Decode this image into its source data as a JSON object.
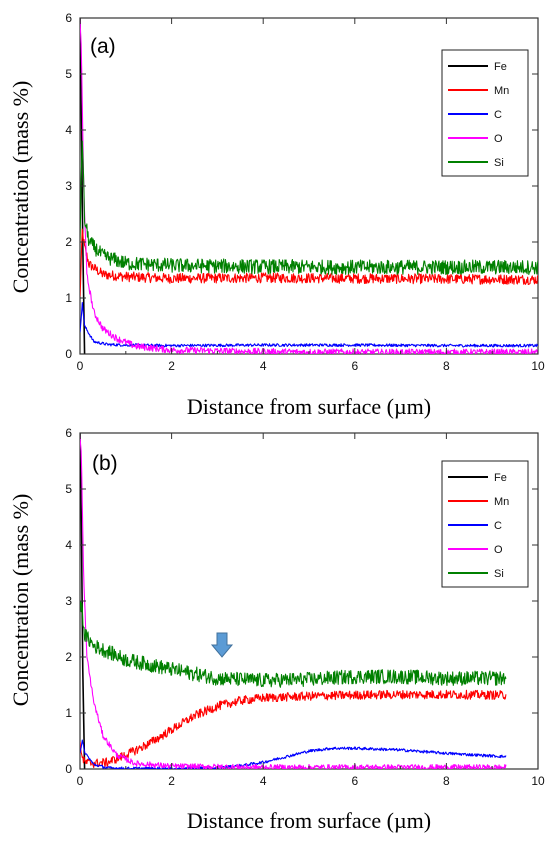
{
  "chart_data": [
    {
      "type": "line",
      "panel_label": "(a)",
      "xlabel": "Distance from surface (µm)",
      "ylabel": "Concentration (mass %)",
      "xlim": [
        0,
        10
      ],
      "ylim": [
        0,
        6
      ],
      "xticks": [
        "0",
        "2",
        "4",
        "6",
        "8",
        "10"
      ],
      "yticks": [
        "0",
        "1",
        "2",
        "3",
        "4",
        "5",
        "6"
      ],
      "legend_position": "top-right",
      "grid": false,
      "series": [
        {
          "name": "Fe",
          "color": "#000000",
          "x": [
            0,
            0.03,
            0.06,
            0.1
          ],
          "y": [
            6.0,
            4.2,
            2.0,
            0.0
          ],
          "noise": 0.0
        },
        {
          "name": "Mn",
          "color": "#ff0000",
          "x": [
            0,
            0.05,
            0.1,
            0.2,
            0.5,
            1,
            2,
            4,
            6,
            8,
            10
          ],
          "y": [
            1.0,
            2.2,
            1.9,
            1.6,
            1.42,
            1.38,
            1.35,
            1.36,
            1.35,
            1.34,
            1.33
          ],
          "noise": 0.09
        },
        {
          "name": "C",
          "color": "#0000ff",
          "x": [
            0,
            0.05,
            0.1,
            0.3,
            0.6,
            1,
            2,
            4,
            6,
            8,
            10
          ],
          "y": [
            0.4,
            0.9,
            0.5,
            0.22,
            0.17,
            0.16,
            0.15,
            0.16,
            0.16,
            0.15,
            0.15
          ],
          "noise": 0.025
        },
        {
          "name": "O",
          "color": "#ff00ff",
          "x": [
            0,
            0.03,
            0.08,
            0.15,
            0.3,
            0.5,
            0.8,
            1.2,
            2,
            4,
            6,
            8,
            10
          ],
          "y": [
            6.0,
            5.4,
            3.0,
            1.4,
            0.75,
            0.45,
            0.28,
            0.14,
            0.07,
            0.04,
            0.03,
            0.03,
            0.03
          ],
          "noise": 0.06
        },
        {
          "name": "Si",
          "color": "#008000",
          "x": [
            0,
            0.05,
            0.1,
            0.2,
            0.5,
            1,
            2,
            4,
            6,
            8,
            10
          ],
          "y": [
            2.1,
            3.9,
            2.4,
            2.0,
            1.75,
            1.62,
            1.58,
            1.56,
            1.55,
            1.55,
            1.55
          ],
          "noise": 0.13
        }
      ]
    },
    {
      "type": "line",
      "panel_label": "(b)",
      "xlabel": "Distance from surface (µm)",
      "ylabel": "Concentration (mass %)",
      "xlim": [
        0,
        10
      ],
      "ylim": [
        0,
        6
      ],
      "xticks": [
        "0",
        "2",
        "4",
        "6",
        "8",
        "10"
      ],
      "yticks": [
        "0",
        "1",
        "2",
        "3",
        "4",
        "5",
        "6"
      ],
      "legend_position": "top-right",
      "grid": false,
      "annotation": {
        "type": "arrow",
        "color": "#5b9bd5",
        "x": 3.1,
        "y_tip": 2.0
      },
      "series": [
        {
          "name": "Fe",
          "color": "#000000",
          "x": [
            0,
            0.03,
            0.06,
            0.1
          ],
          "y": [
            6.0,
            4.4,
            1.8,
            0.0
          ],
          "noise": 0.0
        },
        {
          "name": "Mn",
          "color": "#ff0000",
          "x": [
            0,
            0.05,
            0.1,
            0.3,
            0.6,
            1,
            1.5,
            2,
            2.5,
            3,
            3.5,
            4,
            5,
            6,
            7,
            8,
            9.3
          ],
          "y": [
            0.5,
            0.2,
            0.12,
            0.1,
            0.12,
            0.25,
            0.45,
            0.7,
            0.95,
            1.12,
            1.22,
            1.27,
            1.3,
            1.32,
            1.33,
            1.33,
            1.32
          ],
          "noise": 0.08
        },
        {
          "name": "C",
          "color": "#0000ff",
          "x": [
            0,
            0.05,
            0.1,
            0.3,
            0.6,
            1,
            2,
            3,
            3.5,
            4,
            4.5,
            5,
            5.5,
            6,
            7,
            8,
            9.3
          ],
          "y": [
            0.3,
            0.5,
            0.3,
            0.08,
            0.02,
            0.01,
            0.01,
            0.02,
            0.06,
            0.12,
            0.22,
            0.32,
            0.37,
            0.37,
            0.34,
            0.28,
            0.22
          ],
          "noise": 0.025
        },
        {
          "name": "O",
          "color": "#ff00ff",
          "x": [
            0,
            0.03,
            0.08,
            0.15,
            0.3,
            0.5,
            0.8,
            1.2,
            2,
            4,
            6,
            8,
            9.3
          ],
          "y": [
            6.0,
            5.6,
            3.4,
            2.0,
            1.2,
            0.6,
            0.25,
            0.1,
            0.05,
            0.03,
            0.03,
            0.03,
            0.03
          ],
          "noise": 0.05
        },
        {
          "name": "Si",
          "color": "#008000",
          "x": [
            0,
            0.05,
            0.1,
            0.3,
            0.6,
            1,
            2,
            3,
            4,
            5,
            6,
            7,
            8,
            9.3
          ],
          "y": [
            3.0,
            2.8,
            2.4,
            2.2,
            2.1,
            1.95,
            1.78,
            1.62,
            1.58,
            1.6,
            1.65,
            1.65,
            1.62,
            1.62
          ],
          "noise": 0.13
        }
      ]
    }
  ]
}
